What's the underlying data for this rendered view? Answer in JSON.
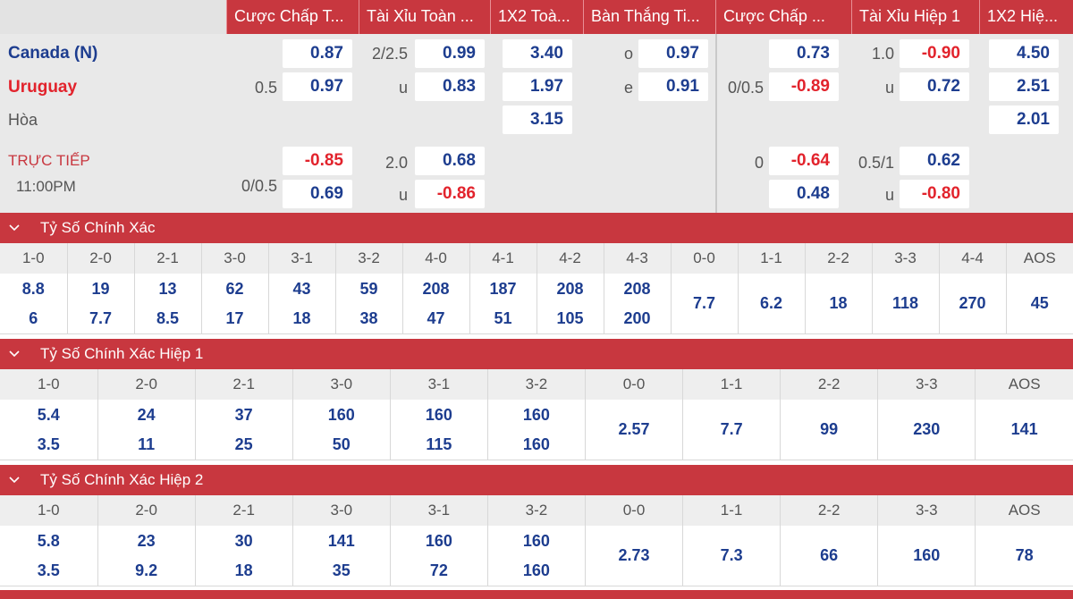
{
  "header": {
    "columns": [
      "Cược Chấp T...",
      "Tài Xỉu Toàn ...",
      "1X2 Toà...",
      "Bàn Thắng Ti...",
      "Cược Chấp ...",
      "Tài Xỉu Hiệp 1",
      "1X2 Hiệ..."
    ]
  },
  "match": {
    "home": "Canada (N)",
    "away": "Uruguay",
    "draw_label": "Hòa",
    "live_label": "TRỰC TIẾP",
    "time": "11:00PM",
    "main": {
      "hdp_line": "0.5",
      "hdp_home": "0.87",
      "hdp_away": "0.97",
      "ou_line": "2/2.5",
      "ou_over_label": "u",
      "ou_over": "0.99",
      "ou_under": "0.83",
      "x12_home": "3.40",
      "x12_away": "1.97",
      "x12_draw": "3.15",
      "oe_o": "o",
      "oe_odd": "0.97",
      "oe_e": "e",
      "oe_even": "0.91",
      "h1_hdp_line": "0/0.5",
      "h1_hdp_home": "0.73",
      "h1_hdp_away": "-0.89",
      "h1_ou_line": "1.0",
      "h1_ou_over": "-0.90",
      "h1_ou_u": "u",
      "h1_ou_under": "0.72",
      "h1_x12_home": "4.50",
      "h1_x12_away": "2.51",
      "h1_x12_draw": "2.01"
    },
    "alt": {
      "hdp_line": "0/0.5",
      "hdp_home": "-0.85",
      "hdp_away": "0.69",
      "ou_line": "2.0",
      "ou_u": "u",
      "ou_over": "0.68",
      "ou_under": "-0.86",
      "h1_hdp_line": "0",
      "h1_hdp_home": "-0.64",
      "h1_hdp_away": "0.48",
      "h1_ou_line": "0.5/1",
      "h1_ou_u": "u",
      "h1_ou_over": "0.62",
      "h1_ou_under": "-0.80"
    }
  },
  "sections": [
    {
      "title": "Tỷ Số Chính Xác",
      "scores": [
        "1-0",
        "2-0",
        "2-1",
        "3-0",
        "3-1",
        "3-2",
        "4-0",
        "4-1",
        "4-2",
        "4-3",
        "0-0",
        "1-1",
        "2-2",
        "3-3",
        "4-4",
        "AOS"
      ],
      "top": [
        "8.8",
        "19",
        "13",
        "62",
        "43",
        "59",
        "208",
        "187",
        "208",
        "208",
        "7.7",
        "6.2",
        "18",
        "118",
        "270",
        "45"
      ],
      "bottom": [
        "6",
        "7.7",
        "8.5",
        "17",
        "18",
        "38",
        "47",
        "51",
        "105",
        "200",
        "",
        "",
        "",
        "",
        "",
        ""
      ]
    },
    {
      "title": "Tỷ Số Chính Xác Hiệp 1",
      "scores": [
        "1-0",
        "2-0",
        "2-1",
        "3-0",
        "3-1",
        "3-2",
        "0-0",
        "1-1",
        "2-2",
        "3-3",
        "AOS"
      ],
      "top": [
        "5.4",
        "24",
        "37",
        "160",
        "160",
        "160",
        "2.57",
        "7.7",
        "99",
        "230",
        "141"
      ],
      "bottom": [
        "3.5",
        "11",
        "25",
        "50",
        "115",
        "160",
        "",
        "",
        "",
        "",
        ""
      ]
    },
    {
      "title": "Tỷ Số Chính Xác Hiệp 2",
      "scores": [
        "1-0",
        "2-0",
        "2-1",
        "3-0",
        "3-1",
        "3-2",
        "0-0",
        "1-1",
        "2-2",
        "3-3",
        "AOS"
      ],
      "top": [
        "5.8",
        "23",
        "30",
        "141",
        "160",
        "160",
        "2.73",
        "7.3",
        "66",
        "160",
        "78"
      ],
      "bottom": [
        "3.5",
        "9.2",
        "18",
        "35",
        "72",
        "160",
        "",
        "",
        "",
        "",
        ""
      ]
    }
  ]
}
